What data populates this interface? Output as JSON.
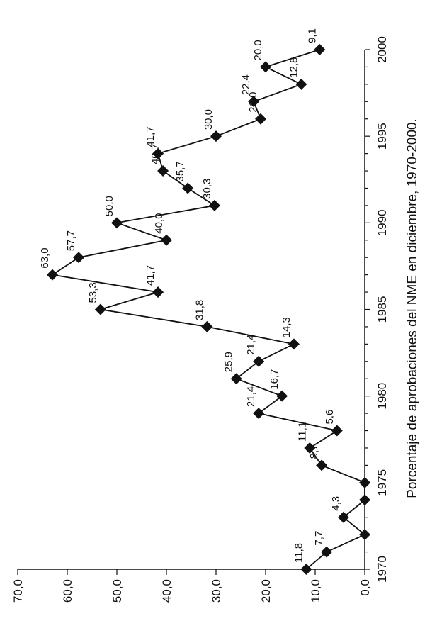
{
  "chart_data": {
    "type": "line",
    "title": "Porcentaje de aprobaciones del NME en diciembre, 1970-2000.",
    "xlabel": "",
    "ylabel": "",
    "x": [
      1970,
      1971,
      1972,
      1973,
      1974,
      1975,
      1976,
      1977,
      1978,
      1979,
      1980,
      1981,
      1982,
      1983,
      1984,
      1985,
      1986,
      1987,
      1988,
      1989,
      1990,
      1991,
      1992,
      1993,
      1994,
      1995,
      1996,
      1997,
      1998,
      1999,
      2000
    ],
    "values": [
      11.8,
      7.7,
      0.0,
      4.3,
      0.0,
      0.0,
      8.7,
      11.1,
      5.6,
      21.4,
      16.7,
      25.9,
      21.4,
      14.3,
      31.8,
      53.3,
      41.7,
      63.0,
      57.7,
      40.0,
      50.0,
      30.3,
      35.7,
      40.7,
      41.7,
      30.0,
      21.0,
      22.4,
      12.8,
      20.0,
      9.1
    ],
    "data_labels": [
      "11,8",
      "7,7",
      "",
      "4,3",
      "",
      "",
      "8,7",
      "11,1",
      "5,6",
      "21,4",
      "16,7",
      "25,9",
      "21,4",
      "14,3",
      "31,8",
      "53,3",
      "41,7",
      "63,0",
      "57,7",
      "40,0",
      "50,0",
      "30,3",
      "35,7",
      "40,7",
      "41,7",
      "30,0",
      "21,0",
      "22,4",
      "12,8",
      "20,0",
      "9,1"
    ],
    "x_ticks": [
      "1970",
      "1975",
      "1980",
      "1985",
      "1990",
      "1995",
      "2000"
    ],
    "y_ticks": [
      "0,0",
      "10,0",
      "20,0",
      "30,0",
      "40,0",
      "50,0",
      "60,0",
      "70,0"
    ],
    "ylim": [
      0,
      70
    ],
    "xlim": [
      1970,
      2000
    ],
    "marker": "diamond",
    "grid": false,
    "orientation": "rotated-90"
  }
}
